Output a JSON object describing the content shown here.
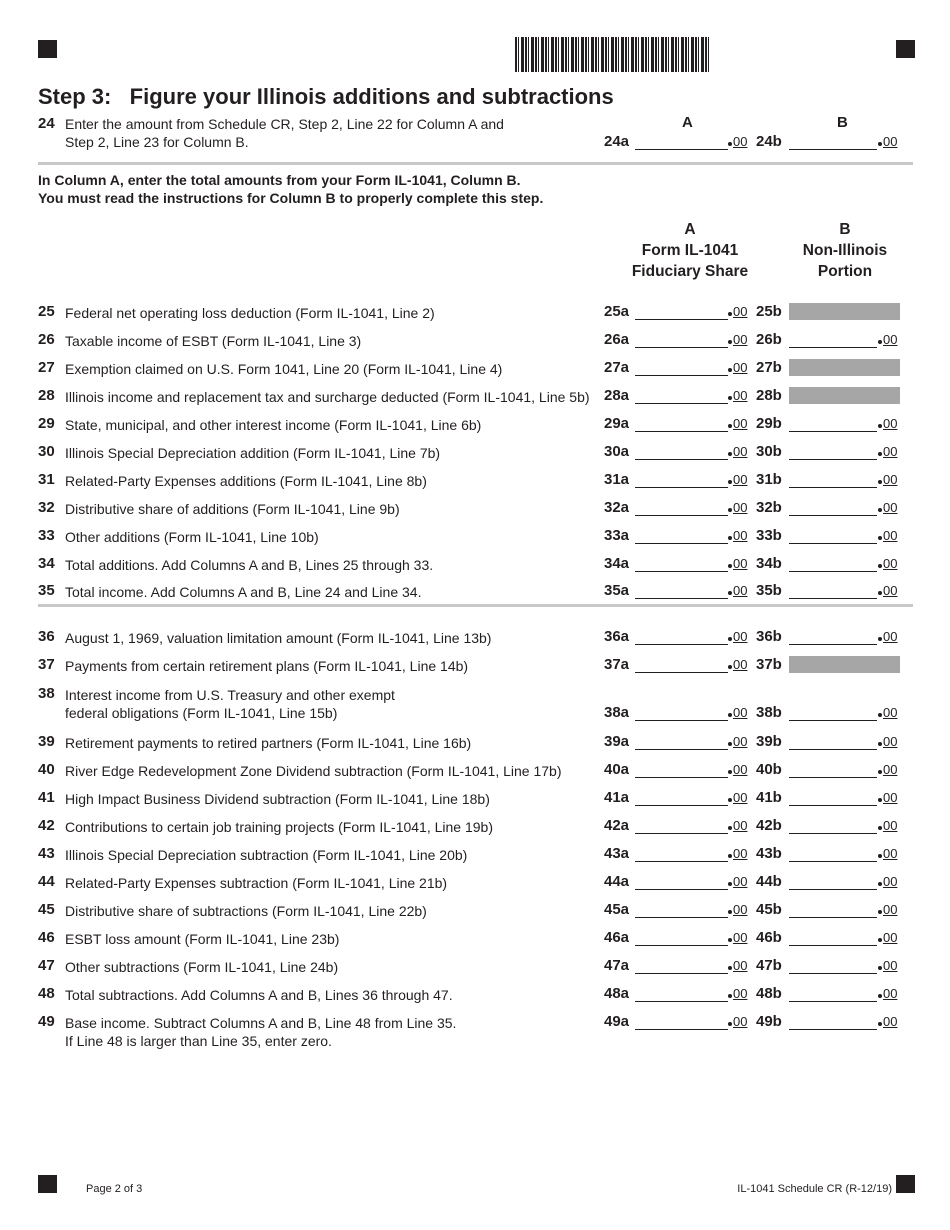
{
  "header": {
    "title": "Step 3:   Figure your Illinois additions and subtractions"
  },
  "line24": {
    "num": "24",
    "text1": "Enter the amount from Schedule CR, Step 2, Line 22 for Column A and",
    "text2": "Step 2, Line 23 for Column B.",
    "col_a": "A",
    "col_b": "B",
    "field_a": "24a",
    "field_b": "24b",
    "cents": "00"
  },
  "instructions": {
    "line1": "In Column A, enter the total amounts from your Form IL-1041, Column B.",
    "line2": "You must read the instructions for Column B to properly complete this step."
  },
  "columns": {
    "a": {
      "letter": "A",
      "line1": "Form IL-1041",
      "line2": "Fiduciary Share"
    },
    "b": {
      "letter": "B",
      "line1": "Non-Illinois",
      "line2": "Portion"
    }
  },
  "cents": "00",
  "rows": [
    {
      "num": "25",
      "text": "Federal net operating loss deduction (Form IL-1041, Line 2)",
      "a": "25a",
      "b": "25b",
      "b_shaded": true
    },
    {
      "num": "26",
      "text": "Taxable income of ESBT (Form IL-1041, Line 3)",
      "a": "26a",
      "b": "26b",
      "b_shaded": false
    },
    {
      "num": "27",
      "text": "Exemption claimed on U.S. Form 1041, Line 20 (Form IL-1041, Line 4)",
      "a": "27a",
      "b": "27b",
      "b_shaded": true
    },
    {
      "num": "28",
      "text": "Illinois income and replacement tax and surcharge deducted (Form IL-1041, Line 5b)",
      "a": "28a",
      "b": "28b",
      "b_shaded": true
    },
    {
      "num": "29",
      "text": "State, municipal, and other interest income (Form IL-1041, Line 6b)",
      "a": "29a",
      "b": "29b",
      "b_shaded": false
    },
    {
      "num": "30",
      "text": "Illinois Special Depreciation addition (Form IL-1041, Line 7b)",
      "a": "30a",
      "b": "30b",
      "b_shaded": false
    },
    {
      "num": "31",
      "text": "Related-Party Expenses additions (Form IL-1041, Line 8b)",
      "a": "31a",
      "b": "31b",
      "b_shaded": false
    },
    {
      "num": "32",
      "text": "Distributive share of additions (Form IL-1041, Line 9b)",
      "a": "32a",
      "b": "32b",
      "b_shaded": false
    },
    {
      "num": "33",
      "text": "Other additions (Form IL-1041, Line 10b)",
      "a": "33a",
      "b": "33b",
      "b_shaded": false
    },
    {
      "num": "34",
      "text": "Total additions. Add Columns A and B, Lines 25 through 33.",
      "a": "34a",
      "b": "34b",
      "b_shaded": false
    },
    {
      "num": "35",
      "text": "Total income.  Add Columns A and B, Line 24 and Line 34.",
      "a": "35a",
      "b": "35b",
      "b_shaded": false
    },
    {
      "num": "36",
      "text": "August 1, 1969, valuation limitation amount (Form IL-1041, Line 13b)",
      "a": "36a",
      "b": "36b",
      "b_shaded": false
    },
    {
      "num": "37",
      "text": "Payments from certain retirement plans (Form IL-1041, Line 14b)",
      "a": "37a",
      "b": "37b",
      "b_shaded": true
    },
    {
      "num": "38",
      "text": "Interest income from U.S. Treasury and other exempt",
      "text2": "federal obligations (Form IL-1041, Line 15b)",
      "a": "38a",
      "b": "38b",
      "b_shaded": false
    },
    {
      "num": "39",
      "text": "Retirement payments to retired partners (Form IL-1041, Line 16b)",
      "a": "39a",
      "b": "39b",
      "b_shaded": false
    },
    {
      "num": "40",
      "text": "River Edge Redevelopment Zone Dividend subtraction (Form IL-1041, Line 17b)",
      "a": "40a",
      "b": "40b",
      "b_shaded": false
    },
    {
      "num": "41",
      "text": "High Impact Business Dividend subtraction (Form IL-1041, Line 18b)",
      "a": "41a",
      "b": "41b",
      "b_shaded": false
    },
    {
      "num": "42",
      "text": "Contributions to certain job training projects (Form IL-1041, Line 19b)",
      "a": "42a",
      "b": "42b",
      "b_shaded": false
    },
    {
      "num": "43",
      "text": "Illinois Special Depreciation subtraction (Form IL-1041, Line 20b)",
      "a": "43a",
      "b": "43b",
      "b_shaded": false
    },
    {
      "num": "44",
      "text": "Related-Party Expenses subtraction (Form IL-1041, Line 21b)",
      "a": "44a",
      "b": "44b",
      "b_shaded": false
    },
    {
      "num": "45",
      "text": "Distributive share of subtractions (Form IL-1041, Line 22b)",
      "a": "45a",
      "b": "45b",
      "b_shaded": false
    },
    {
      "num": "46",
      "text": "ESBT loss amount (Form IL-1041, Line 23b)",
      "a": "46a",
      "b": "46b",
      "b_shaded": false
    },
    {
      "num": "47",
      "text": "Other subtractions (Form IL-1041, Line 24b)",
      "a": "47a",
      "b": "47b",
      "b_shaded": false
    },
    {
      "num": "48",
      "text": "Total subtractions. Add Columns A and B, Lines 36 through 47.",
      "a": "48a",
      "b": "48b",
      "b_shaded": false
    },
    {
      "num": "49",
      "text": "Base income. Subtract Columns A and B, Line 48 from Line 35.",
      "text2": "If Line 48 is larger than Line 35, enter zero.",
      "a": "49a",
      "b": "49b",
      "b_shaded": false,
      "fields_first_line": true
    }
  ],
  "footer": {
    "page": "Page 2 of 3",
    "form": "IL-1041 Schedule CR (R-12/19)"
  }
}
